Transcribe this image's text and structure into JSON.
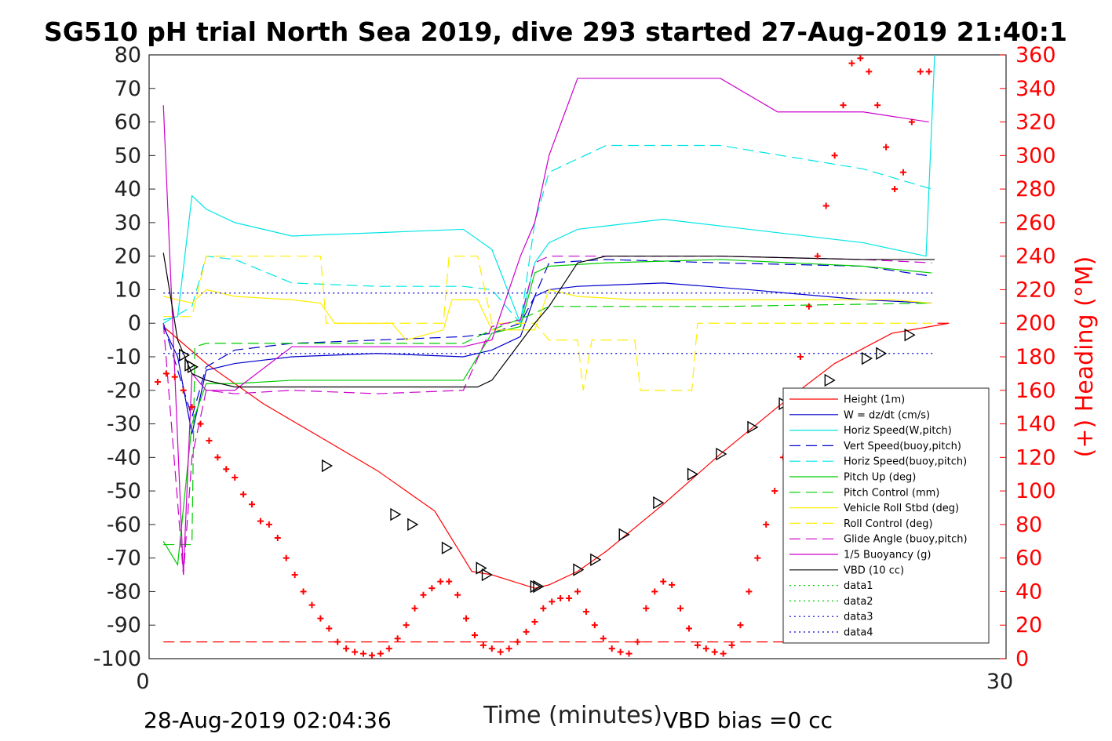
{
  "title": "SG510 pH trial North Sea 2019, dive 293 started 27-Aug-2019 21:40:1",
  "footer": {
    "timestamp": "28-Aug-2019 02:04:36",
    "vbd_bias": "VBD bias =0 cc"
  },
  "chart_data": {
    "type": "line",
    "xlabel": "Time (minutes)",
    "ylabel_right": "(+) Heading (°M)",
    "xlim": [
      0,
      30
    ],
    "ylim_left": [
      -100,
      80
    ],
    "ylim_right": [
      0,
      360
    ],
    "x_ticks": [
      "0",
      "30"
    ],
    "y_left_ticks": [
      "80",
      "70",
      "60",
      "50",
      "40",
      "30",
      "20",
      "10",
      "0",
      "-10",
      "-20",
      "-30",
      "-40",
      "-50",
      "-60",
      "-70",
      "-80",
      "-90",
      "-100"
    ],
    "y_right_ticks": [
      "360",
      "340",
      "320",
      "300",
      "280",
      "260",
      "240",
      "220",
      "200",
      "180",
      "160",
      "140",
      "120",
      "100",
      "80",
      "60",
      "40",
      "20",
      "0"
    ],
    "grid": false,
    "legend_position": "bottom-right",
    "colors": {
      "height": "#ff0000",
      "w": "#0000cc",
      "horiz_speed_w": "#00e5e5",
      "vert_speed_buoy": "#0000cc",
      "horiz_speed_buoy": "#00e5e5",
      "pitch_up": "#00cc00",
      "pitch_control": "#00cc00",
      "roll": "#ffee00",
      "roll_control": "#ffee00",
      "glide_angle": "#cc00cc",
      "buoyancy": "#cc00cc",
      "vbd": "#000000",
      "heading": "#ff0000"
    },
    "series": [
      {
        "key": "height",
        "name": "Height (1m)",
        "style": "solid",
        "x": [
          0.5,
          2,
          4,
          6,
          8,
          10,
          11.3,
          12,
          13.5,
          14,
          15,
          16,
          17,
          18,
          20,
          22,
          24,
          26,
          28,
          27.6
        ],
        "y": [
          -1,
          -12,
          -24,
          -34,
          -44,
          -56,
          -74,
          -75,
          -79,
          -78,
          -74,
          -68,
          -61,
          -54,
          -39,
          -25,
          -12,
          -3,
          0,
          0
        ]
      },
      {
        "key": "w",
        "name": "W = dz/dt (cm/s)",
        "style": "solid",
        "x": [
          0.5,
          1,
          1.5,
          2,
          3,
          5,
          8,
          11,
          12,
          13,
          13.5,
          14,
          15,
          18,
          21,
          25,
          27.4
        ],
        "y": [
          -1,
          -10,
          -33,
          -14,
          -12,
          -10,
          -9,
          -10,
          -8,
          -4,
          8,
          10,
          11,
          12,
          10,
          7,
          6
        ]
      },
      {
        "key": "horiz_speed_w",
        "name": "Horiz Speed(W,pitch)",
        "style": "solid",
        "x": [
          0.5,
          1,
          1.5,
          2,
          3,
          5,
          8,
          11,
          12,
          13,
          13.5,
          14,
          15,
          18,
          21,
          25,
          27.2,
          27.5
        ],
        "y": [
          1,
          2,
          38,
          34,
          30,
          26,
          27,
          28,
          22,
          0,
          18,
          24,
          28,
          31,
          28,
          24,
          20,
          80
        ]
      },
      {
        "key": "vert_speed_buoy",
        "name": "Vert Speed(buoy,pitch)",
        "style": "dash",
        "x": [
          0.5,
          1.5,
          2,
          3,
          5,
          8,
          11,
          12,
          13,
          13.5,
          14,
          16,
          20,
          25,
          27.4
        ],
        "y": [
          0,
          -28,
          -13,
          -8,
          -6,
          -5,
          -4,
          -3,
          0,
          8,
          18,
          19,
          18,
          17,
          14
        ]
      },
      {
        "key": "horiz_speed_buoy",
        "name": "Horiz Speed(buoy,pitch)",
        "style": "dash",
        "x": [
          0.5,
          1.5,
          2,
          3,
          5,
          8,
          11,
          12,
          13,
          13.5,
          14,
          16,
          20,
          25,
          27.4
        ],
        "y": [
          0,
          5,
          20,
          19,
          12,
          11,
          11,
          10,
          0,
          30,
          45,
          53,
          53,
          46,
          40
        ]
      },
      {
        "key": "pitch_up",
        "name": "Pitch Up (deg)",
        "style": "solid",
        "x": [
          0.5,
          1,
          1.5,
          2,
          3,
          5,
          8,
          11,
          12,
          13,
          13.5,
          14,
          16,
          20,
          25,
          27.4
        ],
        "y": [
          -65,
          -72,
          -30,
          -18,
          -18,
          -17,
          -17,
          -17,
          -3,
          -1,
          15,
          17,
          18,
          19,
          17,
          15
        ]
      },
      {
        "key": "pitch_control",
        "name": "Pitch Control (mm)",
        "style": "dash",
        "x": [
          0.5,
          1.5,
          1.6,
          2,
          5,
          11,
          12,
          13.5,
          14,
          15,
          20,
          27.4
        ],
        "y": [
          -66,
          -66,
          -7,
          -6,
          -6,
          -6,
          -2,
          3,
          5,
          5,
          5,
          6
        ]
      },
      {
        "key": "roll",
        "name": "Vehicle Roll Stbd (deg)",
        "style": "solid",
        "x": [
          0.5,
          1.5,
          2,
          3,
          5,
          6,
          6.5,
          8.5,
          9,
          10.3,
          10.6,
          11.5,
          12,
          13.5,
          14,
          15,
          17,
          18,
          19,
          20,
          22,
          24,
          26,
          27.4
        ],
        "y": [
          8,
          6,
          10,
          8,
          7,
          6,
          0,
          0,
          -5,
          -2,
          7,
          7,
          -2,
          -2,
          10,
          8,
          7,
          7,
          7,
          7,
          7,
          7,
          7,
          6
        ]
      },
      {
        "key": "roll_control",
        "name": "Roll Control (deg)",
        "style": "dash",
        "x": [
          0.5,
          1.5,
          2,
          5,
          6,
          6.2,
          9,
          10.3,
          10.5,
          11.5,
          12,
          13.5,
          14,
          15,
          15.2,
          15.5,
          17,
          17.2,
          19,
          19.2,
          21,
          22,
          24,
          26,
          27.4
        ],
        "y": [
          2,
          2,
          20,
          20,
          20,
          0,
          0,
          0,
          20,
          20,
          0,
          0,
          -5,
          -5,
          -20,
          -5,
          -5,
          -20,
          -20,
          0,
          0,
          0,
          0,
          0,
          0
        ]
      },
      {
        "key": "glide_angle",
        "name": "Glide Angle (buoy,pitch)",
        "style": "dash",
        "x": [
          0.5,
          1.2,
          1.5,
          2,
          3,
          5,
          8,
          11,
          12,
          13,
          13.5,
          14,
          16,
          20,
          25,
          27.4
        ],
        "y": [
          0,
          -75,
          -40,
          -20,
          -21,
          -20,
          -21,
          -20,
          -1,
          1,
          18,
          20,
          20,
          20,
          19,
          18
        ]
      },
      {
        "key": "buoyancy",
        "name": "1/5 Buoyancy (g)",
        "style": "solid",
        "x": [
          0.5,
          1.2,
          1.5,
          2,
          3,
          5,
          8,
          11,
          12,
          13,
          13.5,
          14,
          15,
          16,
          20,
          22,
          25,
          27.3
        ],
        "y": [
          65,
          -75,
          -15,
          -20,
          -20,
          -7,
          -7,
          -7,
          -5,
          20,
          30,
          50,
          73,
          73,
          73,
          63,
          63,
          60
        ]
      },
      {
        "key": "vbd",
        "name": "VBD (10 cc)",
        "style": "solid",
        "x": [
          0.5,
          1,
          1.5,
          2,
          3,
          5,
          8,
          11.5,
          12,
          13.5,
          14,
          15,
          16,
          20,
          25,
          27.5
        ],
        "y": [
          21,
          -5,
          -15,
          -17,
          -19,
          -19,
          -19,
          -19,
          -17,
          0,
          5,
          18,
          20,
          20,
          19,
          19
        ]
      },
      {
        "key": "data1",
        "name": "data1",
        "style": "dot",
        "x": [],
        "y": []
      },
      {
        "key": "data2",
        "name": "data2",
        "style": "dot",
        "x": [],
        "y": []
      },
      {
        "key": "data3",
        "name": "data3",
        "style": "dot",
        "x": [
          0.5,
          27.5
        ],
        "y": [
          9,
          9
        ]
      },
      {
        "key": "data4",
        "name": "data4",
        "style": "dot",
        "x": [
          0.5,
          27.5
        ],
        "y": [
          -9,
          -9
        ]
      }
    ],
    "reference_line": {
      "name": "heading reference",
      "style": "dash",
      "color": "#ff0000",
      "y": -95,
      "x": [
        0.5,
        27.5
      ]
    },
    "heading_markers": {
      "name": "(+) Heading (°M)",
      "axis": "right",
      "x": [
        0.3,
        0.6,
        0.9,
        1.2,
        1.5,
        1.8,
        2.1,
        2.4,
        2.7,
        3.0,
        3.3,
        3.6,
        3.9,
        4.2,
        4.5,
        4.8,
        5.1,
        5.4,
        5.7,
        6.0,
        6.3,
        6.6,
        6.9,
        7.2,
        7.5,
        7.8,
        8.1,
        8.4,
        8.7,
        9.0,
        9.3,
        9.6,
        9.9,
        10.2,
        10.5,
        10.8,
        11.1,
        11.4,
        11.7,
        12.0,
        12.3,
        12.6,
        12.9,
        13.2,
        13.5,
        13.8,
        14.1,
        14.4,
        14.7,
        15.0,
        15.3,
        15.6,
        15.9,
        16.2,
        16.5,
        16.8,
        17.1,
        17.4,
        17.7,
        18.0,
        18.3,
        18.6,
        18.9,
        19.2,
        19.5,
        19.8,
        20.1,
        20.4,
        20.7,
        21.0,
        21.3,
        21.6,
        21.9,
        22.2,
        22.5,
        22.8,
        23.1,
        23.4,
        23.7,
        24.0,
        24.3,
        24.6,
        24.9,
        25.2,
        25.5,
        25.8,
        26.1,
        26.4,
        26.7,
        27.0,
        27.3
      ],
      "y": [
        165,
        170,
        168,
        160,
        150,
        140,
        130,
        120,
        113,
        108,
        98,
        92,
        82,
        80,
        72,
        60,
        50,
        40,
        32,
        24,
        18,
        10,
        6,
        4,
        3,
        2,
        3,
        6,
        12,
        20,
        30,
        38,
        42,
        46,
        46,
        38,
        24,
        14,
        8,
        6,
        4,
        6,
        10,
        16,
        22,
        30,
        34,
        36,
        36,
        40,
        28,
        20,
        12,
        6,
        4,
        3,
        10,
        30,
        40,
        46,
        44,
        30,
        18,
        8,
        6,
        4,
        3,
        8,
        20,
        40,
        60,
        80,
        100,
        120,
        150,
        180,
        210,
        240,
        270,
        300,
        330,
        355,
        358,
        350,
        330,
        305,
        280,
        290,
        320,
        350,
        350
      ]
    },
    "triangle_markers": {
      "x": [
        1.2,
        1.4,
        1.5,
        6.2,
        8.6,
        9.2,
        10.4,
        11.6,
        11.8,
        13.5,
        13.6,
        15.0,
        15.6,
        16.6,
        17.8,
        19.0,
        20.0,
        21.1,
        22.2,
        23.8,
        25.1,
        25.6,
        26.6
      ],
      "y": [
        -9.5,
        -12.5,
        -13,
        -42.5,
        -57,
        -60,
        -67,
        -73,
        -75,
        -78.5,
        -78.5,
        -73.5,
        -70.5,
        -63,
        -53.5,
        -45,
        -39,
        -31,
        -24,
        -17,
        -10.5,
        -9,
        -3.5
      ]
    }
  },
  "legend": {
    "entries": [
      {
        "label": "Height (1m)",
        "color": "#ff0000",
        "style": "solid"
      },
      {
        "label": "W = dz/dt (cm/s)",
        "color": "#0000cc",
        "style": "solid"
      },
      {
        "label": "Horiz Speed(W,pitch)",
        "color": "#00e5e5",
        "style": "solid"
      },
      {
        "label": "Vert Speed(buoy,pitch)",
        "color": "#0000cc",
        "style": "dash"
      },
      {
        "label": "Horiz Speed(buoy,pitch)",
        "color": "#00e5e5",
        "style": "dash"
      },
      {
        "label": "Pitch Up (deg)",
        "color": "#00cc00",
        "style": "solid"
      },
      {
        "label": "Pitch Control (mm)",
        "color": "#00cc00",
        "style": "dash"
      },
      {
        "label": "Vehicle Roll Stbd (deg)",
        "color": "#ffee00",
        "style": "solid"
      },
      {
        "label": "Roll Control (deg)",
        "color": "#ffee00",
        "style": "dash"
      },
      {
        "label": "Glide Angle (buoy,pitch)",
        "color": "#cc00cc",
        "style": "dash"
      },
      {
        "label": "1/5 Buoyancy (g)",
        "color": "#cc00cc",
        "style": "solid"
      },
      {
        "label": "VBD (10 cc)",
        "color": "#000000",
        "style": "solid"
      },
      {
        "label": "data1",
        "color": "#00cc00",
        "style": "dot"
      },
      {
        "label": "data2",
        "color": "#00cc00",
        "style": "dot"
      },
      {
        "label": "data3",
        "color": "#0000cc",
        "style": "dot"
      },
      {
        "label": "data4",
        "color": "#0000cc",
        "style": "dot"
      }
    ]
  }
}
